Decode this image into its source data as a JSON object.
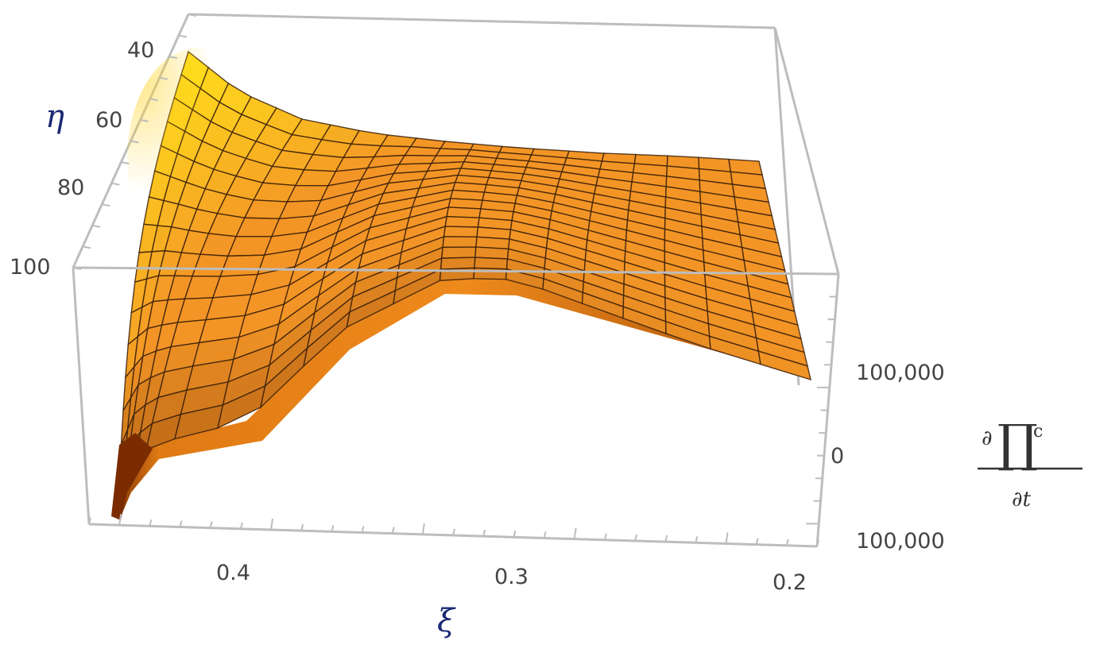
{
  "chart_data": {
    "type": "surface3d",
    "title": "",
    "x_axis": {
      "label": "ξ",
      "ticks": [
        "0.4",
        "0.3",
        "0.2"
      ],
      "range": [
        0.2,
        0.45
      ]
    },
    "y_axis": {
      "label": "η",
      "ticks": [
        "40",
        "60",
        "80",
        "100"
      ],
      "range": [
        40,
        100
      ]
    },
    "z_axis": {
      "label_numerator": "∂∏",
      "label_superscript": "c",
      "label_denominator": "∂t",
      "ticks": [
        "100,000",
        "0",
        "100,000"
      ]
    },
    "surface_color": "#f39526",
    "highlight_color": "#ffd21f",
    "shadow_color": "#7a2c00",
    "box_color": "#bdbdbd",
    "mesh_color": "#3a1e08",
    "grid": "mesh"
  }
}
